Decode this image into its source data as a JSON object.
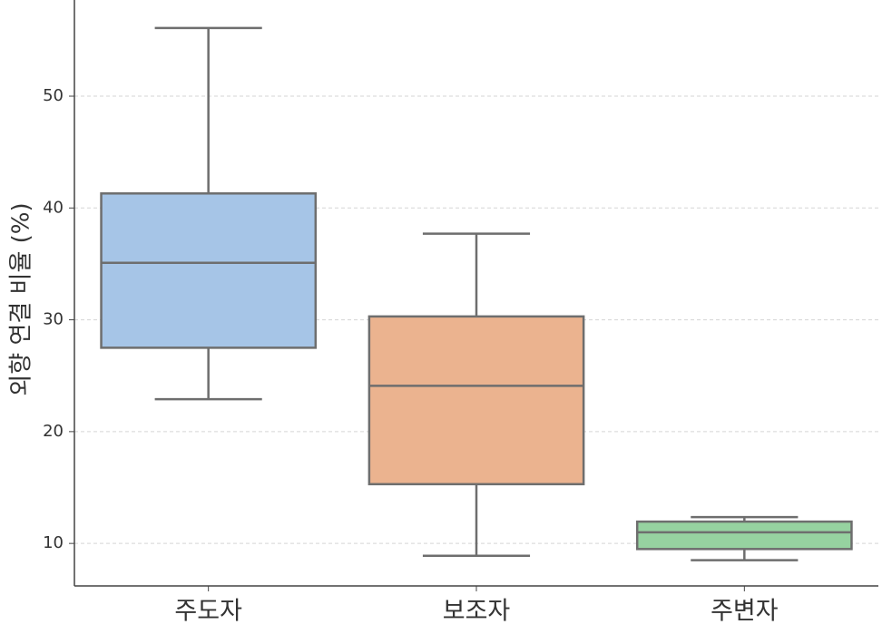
{
  "chart_data": {
    "type": "box",
    "ylabel": "외향 연결 비율 (%)",
    "categories": [
      "주도자",
      "보조자",
      "주변자"
    ],
    "boxes": [
      {
        "color": "#a6c5e7",
        "min": 22.9,
        "q1": 27.5,
        "median": 35.1,
        "q3": 41.3,
        "max": 56.1
      },
      {
        "color": "#ebb38f",
        "min": 8.9,
        "q1": 15.3,
        "median": 24.1,
        "q3": 30.3,
        "max": 37.7
      },
      {
        "color": "#96d2a0",
        "min": 8.5,
        "q1": 9.5,
        "median": 11.0,
        "q3": 11.95,
        "max": 12.35
      }
    ],
    "line_color": "#6e6e6e",
    "ylim": [
      6.2,
      58.6
    ],
    "yticks": [
      10,
      20,
      30,
      40,
      50
    ],
    "grid": true
  }
}
